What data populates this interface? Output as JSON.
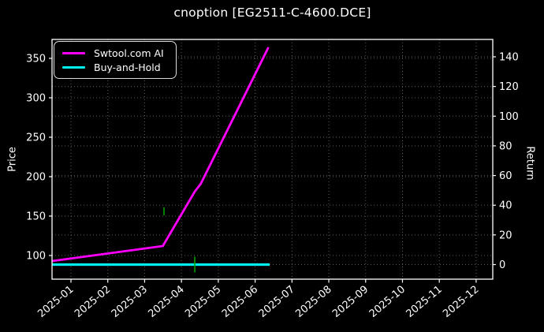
{
  "title": "cnoption [EG2511-C-4600.DCE]",
  "axes": {
    "left_label": "Price",
    "right_label": "Return"
  },
  "legend": {
    "items": [
      {
        "label": "Swtool.com AI",
        "color": "#ff00ff"
      },
      {
        "label": "Buy-and-Hold",
        "color": "#00eded"
      }
    ]
  },
  "colors": {
    "background": "#000000",
    "text": "#ffffff",
    "spine": "#ffffff",
    "grid": "#5a5a5a",
    "ai_line": "#ff00ff",
    "buy_hold_line": "#00eded",
    "signal_marker": "#00a000"
  },
  "chart_data": {
    "type": "line",
    "title": "cnoption [EG2511-C-4600.DCE]",
    "xlabel": "",
    "x_ticklabels": [
      "2025-01",
      "2025-02",
      "2025-03",
      "2025-04",
      "2025-05",
      "2025-06",
      "2025-07",
      "2025-08",
      "2025-09",
      "2025-10",
      "2025-11",
      "2025-12"
    ],
    "left_axis": {
      "label": "Price",
      "ticks": [
        100,
        150,
        200,
        250,
        300,
        350
      ],
      "ylim": [
        72,
        378
      ]
    },
    "right_axis": {
      "label": "Return",
      "ticks": [
        0,
        20,
        40,
        60,
        80,
        100,
        120,
        140
      ],
      "ylim": [
        -6.2,
        156.5
      ]
    },
    "grid": true,
    "legend_position": "upper left",
    "series": [
      {
        "name": "Swtool.com AI",
        "axis": "left",
        "color": "#ff00ff",
        "width": 2.8,
        "points": [
          [
            "2024-12-16",
            93
          ],
          [
            "2025-03-16",
            112
          ],
          [
            "2025-04-12",
            181
          ],
          [
            "2025-04-17",
            191
          ],
          [
            "2025-06-12",
            364
          ]
        ]
      },
      {
        "name": "Buy-and-Hold",
        "axis": "right",
        "color": "#00eded",
        "width": 3.2,
        "points": [
          [
            "2024-12-16",
            0
          ],
          [
            "2025-06-13",
            0
          ]
        ]
      }
    ],
    "markers": [
      {
        "name": "signal-marker",
        "shape": "vline",
        "color": "#00a000",
        "x": "2025-03-17",
        "axis": "left",
        "value": 156,
        "half_height": 5
      },
      {
        "name": "signal-marker",
        "shape": "vline",
        "color": "#00a000",
        "x": "2025-04-12",
        "axis": "right",
        "value": 0,
        "half_height": 10
      }
    ]
  }
}
